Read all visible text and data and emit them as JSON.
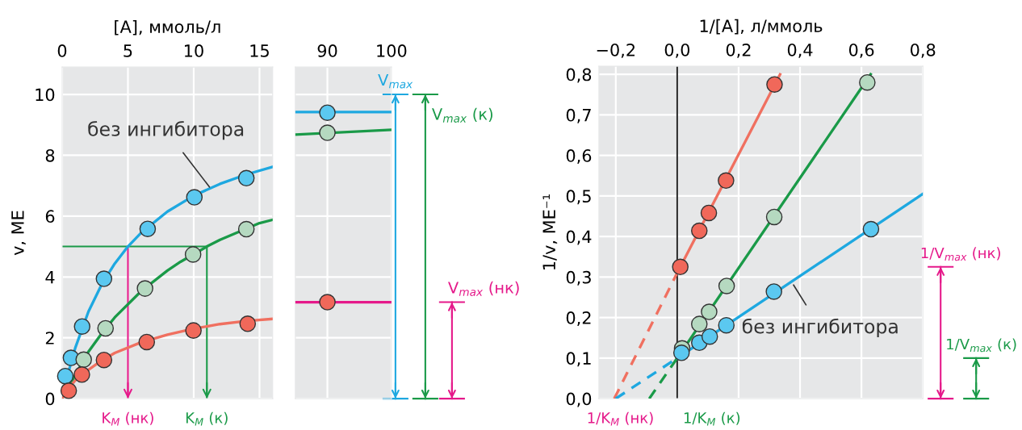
{
  "chart_data": [
    {
      "type": "line",
      "xlabel": "[A], ммоль/л",
      "ylabel": "v, МЕ",
      "xlim": [
        0,
        16
      ],
      "ylim": [
        0,
        10.9
      ],
      "xticks": [
        0,
        5,
        10,
        15
      ],
      "yticks": [
        0,
        2,
        4,
        6,
        8,
        10
      ],
      "grid": true,
      "series": [
        {
          "color": "#1ea8e0",
          "x": [
            0,
            0.5,
            1,
            2,
            3,
            4,
            5,
            6,
            8,
            10,
            12,
            14,
            16
          ],
          "values": [
            0,
            0.9,
            1.67,
            2.86,
            3.75,
            4.44,
            5.0,
            5.45,
            6.15,
            6.67,
            7.06,
            7.37,
            7.62
          ]
        },
        {
          "color": "#1a9a48",
          "x": [
            0,
            2,
            3,
            4,
            6,
            8,
            9,
            11,
            12,
            15,
            16
          ],
          "values": [
            0,
            1.54,
            2.14,
            2.67,
            3.53,
            4.21,
            4.5,
            5.0,
            5.22,
            5.77,
            5.88
          ]
        },
        {
          "color": "#f07060",
          "x": [
            0,
            0.5,
            1,
            2,
            3,
            4,
            6,
            8,
            10,
            12,
            14,
            16
          ],
          "values": [
            0,
            0.35,
            0.6,
            0.95,
            1.25,
            1.5,
            1.85,
            2.1,
            2.3,
            2.45,
            2.55,
            2.62
          ]
        },
        {
          "type": "scatter",
          "marker": "circle",
          "color": "#5bc8f0",
          "x": [
            0.24,
            0.67,
            1.52,
            3.18,
            6.5,
            10.05,
            14.0
          ],
          "values": [
            0.74,
            1.34,
            2.37,
            3.94,
            5.58,
            6.62,
            7.25
          ]
        },
        {
          "type": "scatter",
          "marker": "circle",
          "color": "#b5d9c0",
          "x": [
            1.64,
            3.3,
            6.3,
            9.95,
            14.0
          ],
          "values": [
            1.28,
            2.31,
            3.62,
            4.74,
            5.57
          ]
        },
        {
          "type": "scatter",
          "marker": "circle",
          "color": "#f0685a",
          "x": [
            0.5,
            1.5,
            3.18,
            6.43,
            9.98,
            14.1
          ],
          "values": [
            0.26,
            0.79,
            1.27,
            1.86,
            2.24,
            2.46
          ]
        }
      ],
      "ref_lines": [
        {
          "axis": "y",
          "value": 5,
          "color": "#1a9a48"
        },
        {
          "axis": "x",
          "value": 5,
          "label": "K$_{M}$ (нк)",
          "color": "#e5198a"
        },
        {
          "axis": "x",
          "value": 11,
          "label": "K$_{M}$ (к)",
          "color": "#1a9a48"
        }
      ],
      "annotations": [
        {
          "text": "без ингибитора",
          "x": 11.3,
          "y": 6.9
        }
      ]
    },
    {
      "type": "line",
      "xlim": [
        85,
        100
      ],
      "ylim": [
        0,
        10.9
      ],
      "xticks": [
        90,
        100
      ],
      "yticks": [
        0,
        2,
        4,
        6,
        8,
        10
      ],
      "grid": true,
      "tick_labels": "x",
      "series": [
        {
          "color": "#1ea8e0",
          "x": [
            85,
            100
          ],
          "values": [
            9.42,
            9.42
          ]
        },
        {
          "color": "#1a9a48",
          "x": [
            85,
            100
          ],
          "values": [
            8.68,
            8.84
          ]
        },
        {
          "color": "#e5198a",
          "x": [
            85,
            100
          ],
          "values": [
            3.17,
            3.17
          ]
        },
        {
          "type": "scatter",
          "marker": "circle",
          "color": "#5bc8f0",
          "x": [
            90
          ],
          "values": [
            9.4
          ]
        },
        {
          "type": "scatter",
          "marker": "circle",
          "color": "#b5d9c0",
          "x": [
            90
          ],
          "values": [
            8.74
          ]
        },
        {
          "type": "scatter",
          "marker": "circle",
          "color": "#f0685a",
          "x": [
            90
          ],
          "values": [
            3.17
          ]
        }
      ],
      "ref_lines": [
        {
          "axis": "y",
          "value": 10,
          "label": "V$_{max}$",
          "color": "#1ea8e0"
        },
        {
          "axis": "y",
          "value": 10,
          "label": "V$_{max}$ (к)",
          "color": "#1a9a48"
        },
        {
          "axis": "y",
          "value": 3.17,
          "label": "V$_{max}$ (нк)",
          "color": "#e5198a"
        }
      ]
    },
    {
      "type": "line",
      "xlabel": "1/[A], л/ммоль",
      "ylabel": "1/v, МЕ⁻¹",
      "xlim": [
        -0.255,
        0.8
      ],
      "ylim": [
        0,
        0.82
      ],
      "xticks": [
        {
          "value": -0.2,
          "label": "−0,2"
        },
        {
          "value": 0,
          "label": "0,0"
        },
        {
          "value": 0.2,
          "label": "0,2"
        },
        {
          "value": 0.4,
          "label": "0,4"
        },
        {
          "value": 0.6,
          "label": "0,6"
        },
        {
          "value": 0.8,
          "label": "0,8"
        }
      ],
      "yticks": [
        {
          "value": 0,
          "label": "0,0"
        },
        {
          "value": 0.1,
          "label": "0,1"
        },
        {
          "value": 0.2,
          "label": "0,2"
        },
        {
          "value": 0.3,
          "label": "0,3"
        },
        {
          "value": 0.4,
          "label": "0,4"
        },
        {
          "value": 0.5,
          "label": "0,5"
        },
        {
          "value": 0.6,
          "label": "0,6"
        },
        {
          "value": 0.7,
          "label": "0,7"
        },
        {
          "value": 0.8,
          "label": "0,8"
        }
      ],
      "grid": true,
      "series": [
        {
          "color": "#f07060",
          "x": [
            0,
            0.335
          ],
          "values": [
            0.31,
            0.8
          ]
        },
        {
          "color": "#f07060",
          "line_style": "dashed",
          "x": [
            -0.205,
            0
          ],
          "values": [
            0,
            0.31
          ]
        },
        {
          "color": "#1a9a48",
          "x": [
            0,
            0.63
          ],
          "values": [
            0.1,
            0.8
          ]
        },
        {
          "color": "#1a9a48",
          "line_style": "dashed",
          "x": [
            -0.091,
            0
          ],
          "values": [
            0,
            0.1
          ]
        },
        {
          "color": "#1ea8e0",
          "x": [
            0,
            0.8
          ],
          "values": [
            0.1,
            0.505
          ]
        },
        {
          "color": "#1ea8e0",
          "line_style": "dashed",
          "x": [
            -0.2,
            0
          ],
          "values": [
            0,
            0.1
          ]
        },
        {
          "type": "scatter",
          "marker": "circle",
          "color": "#f0685a",
          "x": [
            0.01,
            0.072,
            0.103,
            0.159,
            0.317
          ],
          "values": [
            0.325,
            0.414,
            0.458,
            0.538,
            0.775
          ]
        },
        {
          "type": "scatter",
          "marker": "circle",
          "color": "#b5d9c0",
          "x": [
            0.016,
            0.072,
            0.104,
            0.161,
            0.316,
            0.619
          ],
          "values": [
            0.124,
            0.184,
            0.214,
            0.278,
            0.448,
            0.78
          ]
        },
        {
          "type": "scatter",
          "marker": "circle",
          "color": "#5bc8f0",
          "x": [
            0.014,
            0.072,
            0.106,
            0.16,
            0.315,
            0.631
          ],
          "values": [
            0.113,
            0.138,
            0.153,
            0.181,
            0.264,
            0.418
          ]
        }
      ],
      "ref_lines": [
        {
          "axis": "x",
          "value": 0,
          "color": "#222222"
        },
        {
          "axis": "y",
          "value": 0.325,
          "label": "1/V$_{max}$ (нк)",
          "color": "#e5198a"
        },
        {
          "axis": "y",
          "value": 0.1,
          "label": "1/V$_{max}$ (к)",
          "color": "#1a9a48"
        }
      ],
      "annotations": [
        {
          "text": "1/K$_{M}$ (нк)",
          "x": -0.2,
          "y": 0
        },
        {
          "text": "1/K$_{M}$ (к)",
          "x": -0.091,
          "y": 0
        },
        {
          "text": "без ингибитора",
          "x": 0.375,
          "y": 0.285
        }
      ]
    }
  ]
}
